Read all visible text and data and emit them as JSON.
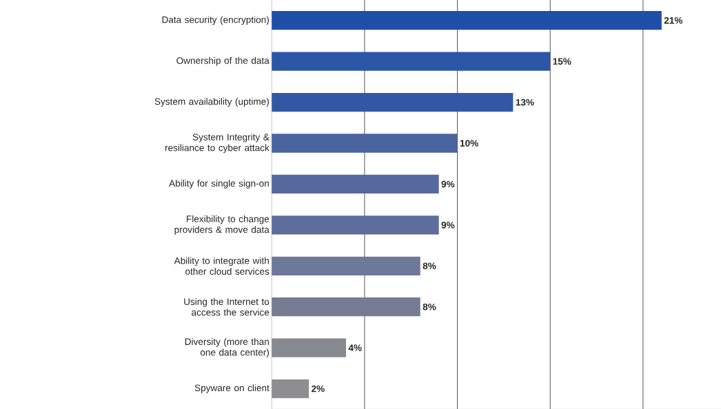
{
  "chart_data": {
    "type": "bar",
    "orientation": "horizontal",
    "categories": [
      "Data security (encryption)",
      "Ownership of the data",
      "System availability (uptime)",
      "System Integrity & resiliance to cyber attack",
      "Ability for single sign-on",
      "Flexibility to change providers & move data",
      "Ability to integrate with other cloud services",
      "Using the Internet to access the service",
      "Diversity (more than one data center)",
      "Spyware on client"
    ],
    "values": [
      21,
      15,
      13,
      10,
      9,
      9,
      8,
      8,
      4,
      2
    ],
    "value_labels": [
      "21%",
      "15%",
      "13%",
      "10%",
      "9%",
      "9%",
      "8%",
      "8%",
      "4%",
      "2%"
    ],
    "colors": [
      "#1f4fa8",
      "#2b56a8",
      "#3258a5",
      "#4a64a0",
      "#55699f",
      "#5d6d9c",
      "#6e7898",
      "#757c93",
      "#86898f",
      "#8e8e90"
    ],
    "xlim": [
      0,
      24.2
    ],
    "xticks": [
      {
        "value": 5,
        "label": null
      },
      {
        "value": 10,
        "label": null
      },
      {
        "value": 15,
        "label": null
      },
      {
        "value": 20,
        "label": null
      }
    ],
    "grid": "x",
    "tick_labels": "y"
  }
}
